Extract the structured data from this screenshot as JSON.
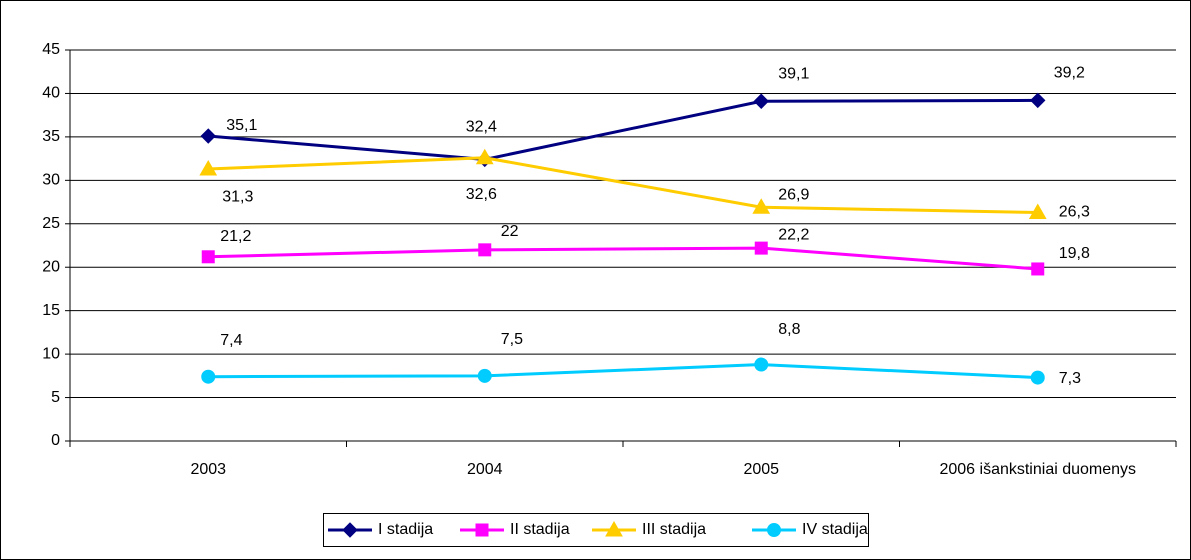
{
  "chart_data": {
    "type": "line",
    "categories": [
      "2003",
      "2004",
      "2005",
      "2006 išankstiniai duomenys"
    ],
    "series": [
      {
        "name": "I stadija",
        "color": "#000080",
        "values": [
          35.1,
          32.4,
          39.1,
          39.2
        ],
        "value_labels": [
          "35,1",
          "32,4",
          "39,1",
          "39,2"
        ]
      },
      {
        "name": "II stadija",
        "color": "#ff00ff",
        "values": [
          21.2,
          22,
          22.2,
          19.8
        ],
        "value_labels": [
          "21,2",
          "22",
          "22,2",
          "19,8"
        ]
      },
      {
        "name": "III stadija",
        "color": "#ffcc00",
        "values": [
          31.3,
          32.6,
          26.9,
          26.3
        ],
        "value_labels": [
          "31,3",
          "32,6",
          "26,9",
          "26,3"
        ]
      },
      {
        "name": "IV stadija",
        "color": "#00ccff",
        "values": [
          7.4,
          7.5,
          8.8,
          7.3
        ],
        "value_labels": [
          "7,4",
          "7,5",
          "8,8",
          "7,3"
        ]
      }
    ],
    "ylim": [
      0,
      45
    ],
    "yticks": [
      0,
      5,
      10,
      15,
      20,
      25,
      30,
      35,
      40,
      45
    ],
    "grid": true,
    "legend": "bottom"
  }
}
